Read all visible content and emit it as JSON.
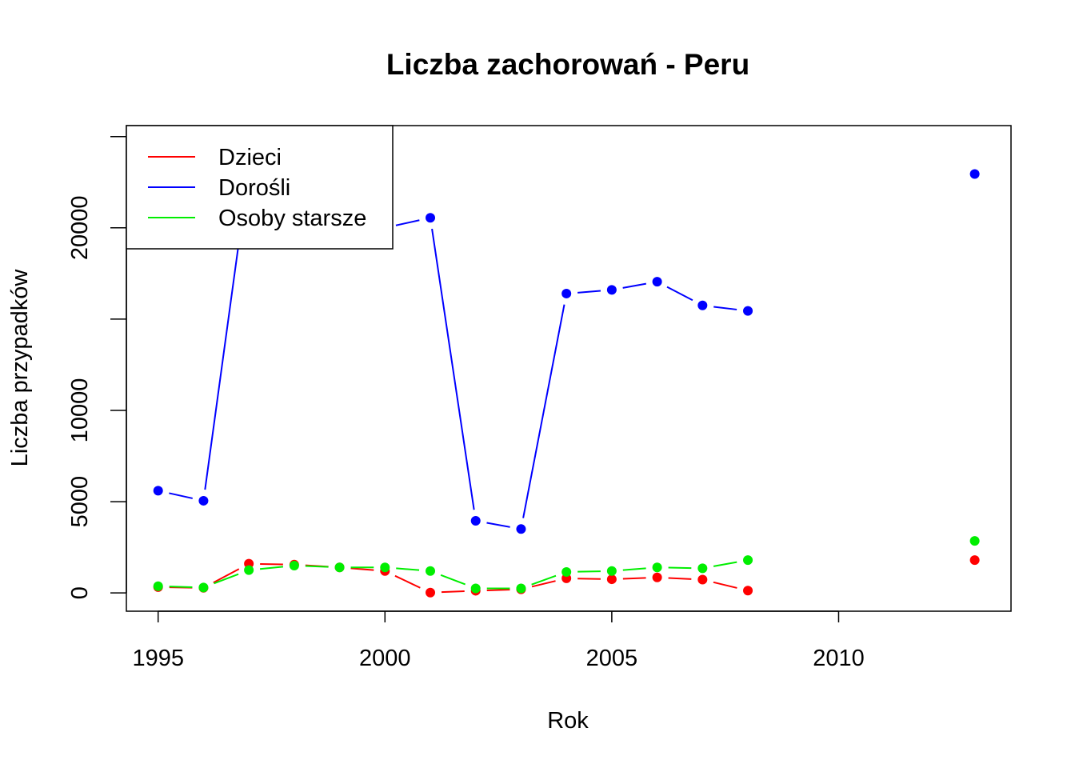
{
  "chart_data": {
    "type": "line",
    "title": "Liczba zachorowań -  Peru",
    "xlabel": "Rok",
    "ylabel": "Liczba przypadków",
    "xlim": [
      1994.3,
      2013.8
    ],
    "ylim": [
      -1000,
      25600
    ],
    "x_ticks": [
      1995,
      2000,
      2005,
      2010
    ],
    "y_ticks": [
      0,
      5000,
      10000,
      15000,
      20000,
      25000
    ],
    "y_tick_labels": [
      "0",
      "5000",
      "10000",
      "",
      "20000",
      ""
    ],
    "grid": false,
    "legend_position": "top-left",
    "x": [
      1995,
      1996,
      1997,
      1998,
      1999,
      2000,
      2001,
      2002,
      2003,
      2004,
      2005,
      2006,
      2007,
      2008,
      2009,
      2010,
      2011,
      2012,
      2013
    ],
    "series": [
      {
        "name": "Dzieci",
        "color": "#ff0000",
        "values": [
          320,
          280,
          1600,
          1550,
          1400,
          1200,
          20,
          120,
          200,
          800,
          750,
          850,
          730,
          130,
          null,
          null,
          null,
          null,
          1800
        ]
      },
      {
        "name": "Dorośli",
        "color": "#0000ff",
        "values": [
          5600,
          5050,
          23200,
          24100,
          21500,
          20000,
          20550,
          3950,
          3500,
          16400,
          16600,
          17050,
          15750,
          15450,
          null,
          null,
          null,
          null,
          22950
        ]
      },
      {
        "name": "Osoby starsze",
        "color": "#00ee00",
        "values": [
          370,
          300,
          1250,
          1500,
          1400,
          1400,
          1200,
          250,
          250,
          1150,
          1200,
          1400,
          1350,
          1800,
          null,
          null,
          null,
          null,
          2850
        ]
      }
    ]
  }
}
